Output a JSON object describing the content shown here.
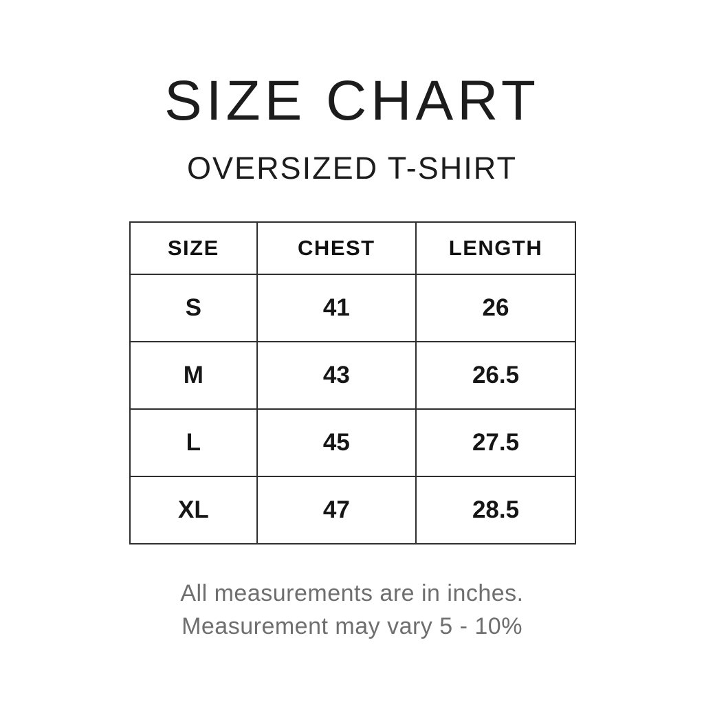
{
  "page": {
    "title": "SIZE CHART",
    "subtitle": "OVERSIZED T-SHIRT"
  },
  "table": {
    "columns": [
      "SIZE",
      "CHEST",
      "LENGTH"
    ],
    "rows": [
      [
        "S",
        "41",
        "26"
      ],
      [
        "M",
        "43",
        "26.5"
      ],
      [
        "L",
        "45",
        "27.5"
      ],
      [
        "XL",
        "47",
        "28.5"
      ]
    ]
  },
  "footer": {
    "line1": "All measurements are in inches.",
    "line2": "Measurement may vary 5 - 10%"
  },
  "colors": {
    "text": "#1c1c1c",
    "muted": "#6e6e6e",
    "border": "#2f2f2f",
    "background": "#ffffff"
  },
  "chart_data": {
    "type": "table",
    "title": "SIZE CHART",
    "subtitle": "OVERSIZED T-SHIRT",
    "columns": [
      "SIZE",
      "CHEST",
      "LENGTH"
    ],
    "rows": [
      [
        "S",
        41,
        26
      ],
      [
        "M",
        43,
        26.5
      ],
      [
        "L",
        45,
        27.5
      ],
      [
        "XL",
        47,
        28.5
      ]
    ],
    "units": "inches",
    "notes": [
      "All measurements are in inches.",
      "Measurement may vary 5 - 10%"
    ]
  }
}
